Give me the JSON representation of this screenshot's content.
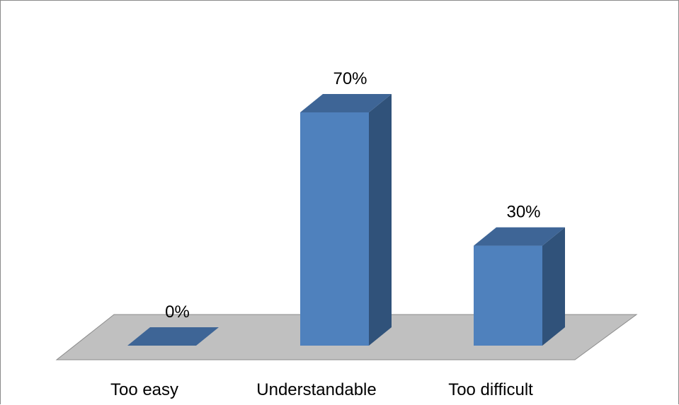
{
  "colors": {
    "bar_front": "#4F81BD",
    "bar_side": "#30527A",
    "bar_top": "#3E6596",
    "floor": "#C0C0C0",
    "floor_edge": "#8C8C8C",
    "text": "#000000"
  },
  "chart_data": {
    "type": "bar",
    "style": "3d-column",
    "categories": [
      "Too easy",
      "Understandable",
      "Too difficult"
    ],
    "values": [
      0,
      70,
      30
    ],
    "data_labels": [
      "0%",
      "70%",
      "30%"
    ],
    "unit": "%",
    "title": "",
    "xlabel": "",
    "ylabel": "",
    "ylim": [
      0,
      70
    ],
    "grid": false,
    "legend": false
  }
}
